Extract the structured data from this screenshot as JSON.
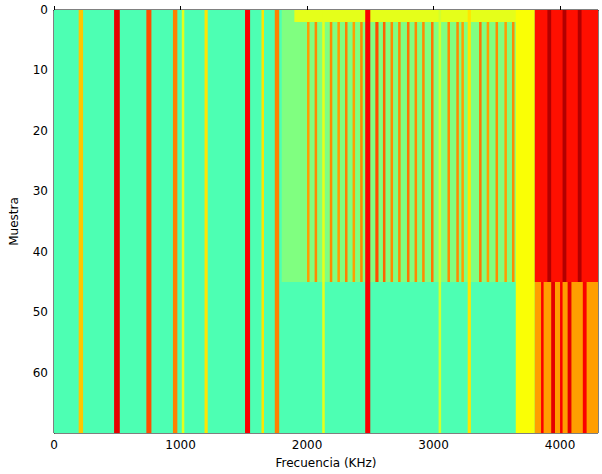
{
  "chart_data": {
    "type": "heatmap",
    "xlabel": "Frecuencia (KHz)",
    "ylabel": "Muestra",
    "xlim": [
      0,
      4300
    ],
    "ylim": [
      70,
      0
    ],
    "xticks": [
      0,
      1000,
      2000,
      3000,
      4000
    ],
    "yticks": [
      0,
      10,
      20,
      30,
      40,
      50,
      60
    ],
    "color_range": [
      0,
      1
    ],
    "cells": [
      [
        0,
        4300,
        0,
        70,
        0.45
      ],
      [
        1800,
        3750,
        0,
        45,
        0.5
      ],
      [
        1900,
        3700,
        0,
        2,
        0.6
      ],
      [
        195,
        230,
        0,
        70,
        0.68
      ],
      [
        475,
        520,
        0,
        70,
        0.9
      ],
      [
        730,
        770,
        0,
        70,
        0.8
      ],
      [
        940,
        975,
        0,
        70,
        0.75
      ],
      [
        1010,
        1030,
        0,
        70,
        0.6
      ],
      [
        1190,
        1215,
        0,
        70,
        0.65
      ],
      [
        1510,
        1550,
        0,
        70,
        0.88
      ],
      [
        1640,
        1660,
        0,
        70,
        0.65
      ],
      [
        1745,
        1780,
        0,
        70,
        0.75
      ],
      [
        2120,
        2140,
        0,
        70,
        0.6
      ],
      [
        2460,
        2500,
        0,
        70,
        0.88
      ],
      [
        3040,
        3060,
        0,
        70,
        0.58
      ],
      [
        3270,
        3295,
        0,
        70,
        0.65
      ],
      [
        2000,
        2020,
        2,
        45,
        0.72
      ],
      [
        2060,
        2080,
        2,
        45,
        0.74
      ],
      [
        2180,
        2200,
        2,
        45,
        0.74
      ],
      [
        2240,
        2260,
        2,
        45,
        0.72
      ],
      [
        2300,
        2320,
        2,
        45,
        0.75
      ],
      [
        2360,
        2380,
        2,
        45,
        0.72
      ],
      [
        2420,
        2440,
        2,
        45,
        0.74
      ],
      [
        2540,
        2565,
        2,
        45,
        0.8
      ],
      [
        2600,
        2620,
        2,
        45,
        0.78
      ],
      [
        2660,
        2680,
        2,
        45,
        0.74
      ],
      [
        2720,
        2740,
        2,
        45,
        0.74
      ],
      [
        2790,
        2810,
        2,
        45,
        0.76
      ],
      [
        2850,
        2870,
        2,
        45,
        0.74
      ],
      [
        2910,
        2930,
        2,
        45,
        0.74
      ],
      [
        2980,
        3000,
        2,
        45,
        0.76
      ],
      [
        3110,
        3130,
        2,
        45,
        0.74
      ],
      [
        3180,
        3200,
        2,
        45,
        0.74
      ],
      [
        3220,
        3240,
        2,
        45,
        0.72
      ],
      [
        3360,
        3380,
        2,
        45,
        0.76
      ],
      [
        3420,
        3440,
        2,
        45,
        0.72
      ],
      [
        3490,
        3510,
        2,
        45,
        0.74
      ],
      [
        3560,
        3580,
        2,
        45,
        0.72
      ],
      [
        3620,
        3640,
        2,
        45,
        0.74
      ],
      [
        3650,
        3800,
        0,
        70,
        0.62
      ],
      [
        3800,
        4300,
        0,
        45,
        0.86
      ],
      [
        3800,
        4300,
        45,
        70,
        0.72
      ],
      [
        3900,
        3930,
        0,
        45,
        0.95
      ],
      [
        4020,
        4050,
        0,
        45,
        0.95
      ],
      [
        4140,
        4170,
        0,
        45,
        0.95
      ],
      [
        3850,
        3870,
        45,
        70,
        0.88
      ],
      [
        3930,
        3960,
        45,
        70,
        0.9
      ],
      [
        4000,
        4020,
        45,
        70,
        0.88
      ],
      [
        4060,
        4090,
        45,
        70,
        0.9
      ],
      [
        4180,
        4210,
        45,
        70,
        0.88
      ]
    ]
  }
}
